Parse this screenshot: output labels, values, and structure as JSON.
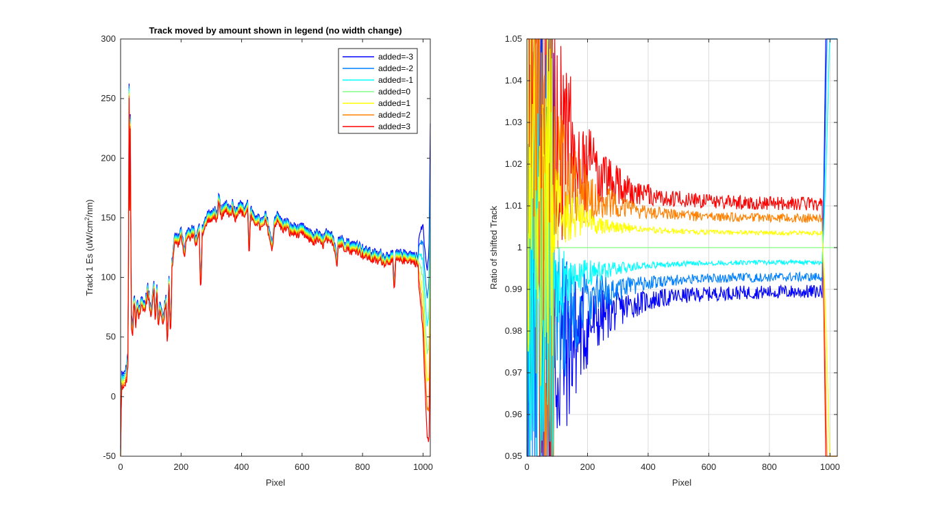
{
  "figure": {
    "background": "#ffffff"
  },
  "chart_data": [
    {
      "type": "line",
      "title": "Track moved by amount shown in legend (no width change)",
      "xlabel": "Pixel",
      "ylabel_main": "Track 1 Es (uW/cm",
      "ylabel_sup": "2",
      "ylabel_tail": "/nm)",
      "xlim": [
        0,
        1024
      ],
      "ylim": [
        -50,
        300
      ],
      "xticks": [
        0,
        200,
        400,
        600,
        800,
        1000
      ],
      "yticks": [
        -50,
        0,
        50,
        100,
        150,
        200,
        250,
        300
      ],
      "grid": false,
      "legend": "top-right",
      "series": [
        {
          "name": "added=-3",
          "color": "#0000ff",
          "offset": 3
        },
        {
          "name": "added=-2",
          "color": "#0080ff",
          "offset": 2
        },
        {
          "name": "added=-1",
          "color": "#00ffff",
          "offset": 1
        },
        {
          "name": "added=0",
          "color": "#80ff80",
          "offset": 0
        },
        {
          "name": "added=1",
          "color": "#ffff00",
          "offset": -1
        },
        {
          "name": "added=2",
          "color": "#ff8000",
          "offset": -2
        },
        {
          "name": "added=3",
          "color": "#ff0000",
          "offset": -3
        }
      ],
      "base_curve": [
        [
          0,
          -50
        ],
        [
          3,
          15
        ],
        [
          10,
          12
        ],
        [
          20,
          20
        ],
        [
          25,
          35
        ],
        [
          28,
          257
        ],
        [
          30,
          160
        ],
        [
          32,
          233
        ],
        [
          34,
          140
        ],
        [
          36,
          60
        ],
        [
          40,
          55
        ],
        [
          45,
          85
        ],
        [
          50,
          60
        ],
        [
          55,
          80
        ],
        [
          60,
          70
        ],
        [
          70,
          80
        ],
        [
          80,
          75
        ],
        [
          90,
          90
        ],
        [
          100,
          70
        ],
        [
          110,
          95
        ],
        [
          115,
          65
        ],
        [
          120,
          90
        ],
        [
          125,
          60
        ],
        [
          130,
          75
        ],
        [
          140,
          65
        ],
        [
          150,
          80
        ],
        [
          155,
          45
        ],
        [
          160,
          100
        ],
        [
          165,
          48
        ],
        [
          170,
          110
        ],
        [
          175,
          125
        ],
        [
          180,
          135
        ],
        [
          190,
          130
        ],
        [
          200,
          138
        ],
        [
          210,
          120
        ],
        [
          220,
          138
        ],
        [
          230,
          135
        ],
        [
          240,
          140
        ],
        [
          250,
          130
        ],
        [
          260,
          140
        ],
        [
          265,
          88
        ],
        [
          270,
          140
        ],
        [
          280,
          145
        ],
        [
          290,
          152
        ],
        [
          300,
          150
        ],
        [
          310,
          155
        ],
        [
          320,
          150
        ],
        [
          325,
          167
        ],
        [
          330,
          155
        ],
        [
          340,
          155
        ],
        [
          350,
          160
        ],
        [
          360,
          155
        ],
        [
          370,
          160
        ],
        [
          380,
          152
        ],
        [
          390,
          160
        ],
        [
          400,
          158
        ],
        [
          410,
          155
        ],
        [
          420,
          160
        ],
        [
          425,
          120
        ],
        [
          430,
          155
        ],
        [
          440,
          148
        ],
        [
          450,
          150
        ],
        [
          460,
          145
        ],
        [
          470,
          145
        ],
        [
          480,
          150
        ],
        [
          490,
          140
        ],
        [
          500,
          125
        ],
        [
          510,
          148
        ],
        [
          520,
          150
        ],
        [
          530,
          145
        ],
        [
          540,
          143
        ],
        [
          550,
          145
        ],
        [
          560,
          140
        ],
        [
          570,
          140
        ],
        [
          580,
          140
        ],
        [
          590,
          138
        ],
        [
          600,
          140
        ],
        [
          610,
          138
        ],
        [
          620,
          135
        ],
        [
          630,
          135
        ],
        [
          640,
          132
        ],
        [
          650,
          135
        ],
        [
          660,
          132
        ],
        [
          670,
          130
        ],
        [
          680,
          135
        ],
        [
          690,
          132
        ],
        [
          700,
          133
        ],
        [
          710,
          125
        ],
        [
          715,
          112
        ],
        [
          720,
          130
        ],
        [
          730,
          130
        ],
        [
          740,
          128
        ],
        [
          750,
          128
        ],
        [
          760,
          125
        ],
        [
          770,
          125
        ],
        [
          780,
          126
        ],
        [
          790,
          124
        ],
        [
          800,
          122
        ],
        [
          810,
          120
        ],
        [
          820,
          120
        ],
        [
          830,
          118
        ],
        [
          840,
          118
        ],
        [
          850,
          116
        ],
        [
          860,
          118
        ],
        [
          870,
          115
        ],
        [
          880,
          116
        ],
        [
          890,
          117
        ],
        [
          900,
          116
        ],
        [
          905,
          88
        ],
        [
          910,
          118
        ],
        [
          920,
          117
        ],
        [
          930,
          118
        ],
        [
          940,
          117
        ],
        [
          950,
          118
        ],
        [
          960,
          117
        ],
        [
          970,
          116
        ],
        [
          980,
          115
        ],
        [
          990,
          110
        ],
        [
          1000,
          100
        ],
        [
          1005,
          70
        ],
        [
          1010,
          50
        ],
        [
          1015,
          35
        ],
        [
          1020,
          45
        ],
        [
          1024,
          140
        ]
      ]
    },
    {
      "type": "line",
      "title": "",
      "xlabel": "Pixel",
      "ylabel": "Ratio of shifted Track",
      "xlim": [
        0,
        1024
      ],
      "ylim": [
        0.95,
        1.05
      ],
      "xticks": [
        0,
        200,
        400,
        600,
        800,
        1000
      ],
      "yticks": [
        0.95,
        0.96,
        0.97,
        0.98,
        0.99,
        1,
        1.01,
        1.02,
        1.03,
        1.04,
        1.05
      ],
      "ytick_labels": [
        "0.95",
        "0.96",
        "0.97",
        "0.98",
        "0.99",
        "1",
        "1.01",
        "1.02",
        "1.03",
        "1.04",
        "1.05"
      ],
      "grid": true,
      "legend": "none",
      "series": [
        {
          "color": "#0000ff",
          "offset": -3
        },
        {
          "color": "#0080ff",
          "offset": -2
        },
        {
          "color": "#00ffff",
          "offset": -1
        },
        {
          "color": "#80ff80",
          "offset": 0
        },
        {
          "color": "#ffff00",
          "offset": 1
        },
        {
          "color": "#ff8000",
          "offset": 2
        },
        {
          "color": "#ff0000",
          "offset": 3
        }
      ]
    }
  ]
}
